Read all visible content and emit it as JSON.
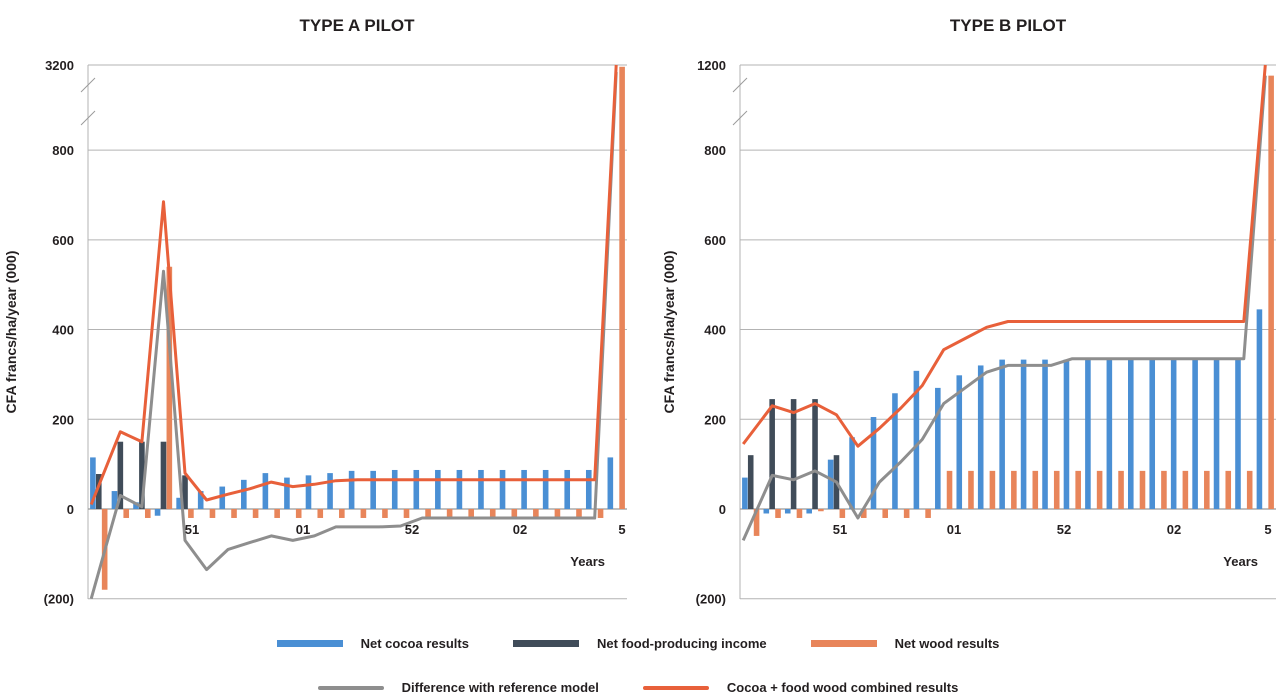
{
  "colors": {
    "cocoa": "#4a8fd4",
    "food": "#404c59",
    "wood": "#e8855a",
    "difference": "#8e8e8e",
    "combined": "#e8603a",
    "grid": "#b3b3b3",
    "text": "#231f20"
  },
  "legend": {
    "cocoa": "Net cocoa results",
    "food": "Net food-producing income",
    "wood": "Net wood results",
    "difference": "Difference with reference model",
    "combined": "Cocoa + food wood combined results"
  },
  "chart_data": [
    {
      "type": "bar",
      "title": "TYPE A PILOT",
      "xlabel": "Years",
      "ylabel": "CFA francs/ha/year (000)",
      "y_tick_labels": [
        "(200)",
        "0",
        "200",
        "400",
        "600",
        "800",
        "3200"
      ],
      "axis_break": "between 800 and 3200",
      "x_tick_labels": [
        "51",
        "01",
        "52",
        "02",
        "5"
      ],
      "x": [
        1,
        2,
        3,
        4,
        5,
        6,
        7,
        8,
        9,
        10,
        11,
        12,
        13,
        14,
        15,
        16,
        17,
        18,
        19,
        20,
        21,
        22,
        23,
        24,
        25
      ],
      "series": [
        {
          "name": "Net cocoa results",
          "kind": "bar",
          "values": [
            115,
            40,
            15,
            -15,
            25,
            40,
            50,
            65,
            80,
            70,
            75,
            80,
            85,
            85,
            87,
            87,
            87,
            87,
            87,
            87,
            87,
            87,
            87,
            87,
            115
          ]
        },
        {
          "name": "Net food-producing income",
          "kind": "bar",
          "values": [
            78,
            150,
            150,
            150,
            75,
            0,
            0,
            0,
            0,
            0,
            0,
            0,
            0,
            0,
            0,
            0,
            0,
            0,
            0,
            0,
            0,
            0,
            0,
            0,
            0
          ]
        },
        {
          "name": "Net wood results",
          "kind": "bar",
          "values": [
            -180,
            -20,
            -20,
            540,
            -20,
            -20,
            -20,
            -20,
            -20,
            -20,
            -20,
            -20,
            -20,
            -20,
            -20,
            -20,
            -20,
            -20,
            -20,
            -20,
            -20,
            -20,
            -20,
            -20,
            3150
          ]
        },
        {
          "name": "Difference with reference model",
          "kind": "line",
          "values": [
            -200,
            30,
            5,
            530,
            -70,
            -135,
            -90,
            -75,
            -60,
            -70,
            -60,
            -40,
            -40,
            -40,
            -38,
            -20,
            -20,
            -20,
            -20,
            -20,
            -20,
            -20,
            -20,
            -20,
            3000
          ]
        },
        {
          "name": "Cocoa + food wood combined results",
          "kind": "line",
          "values": [
            10,
            172,
            150,
            685,
            80,
            20,
            33,
            45,
            60,
            50,
            55,
            63,
            65,
            65,
            65,
            65,
            65,
            65,
            65,
            65,
            65,
            65,
            65,
            65,
            3200
          ]
        }
      ]
    },
    {
      "type": "bar",
      "title": "TYPE B PILOT",
      "xlabel": "Years",
      "ylabel": "CFA francs/ha/year (000)",
      "y_tick_labels": [
        "(200)",
        "0",
        "200",
        "400",
        "600",
        "800",
        "1200"
      ],
      "axis_break": "between 800 and 1200",
      "x_tick_labels": [
        "51",
        "01",
        "52",
        "02",
        "5"
      ],
      "x": [
        1,
        2,
        3,
        4,
        5,
        6,
        7,
        8,
        9,
        10,
        11,
        12,
        13,
        14,
        15,
        16,
        17,
        18,
        19,
        20,
        21,
        22,
        23,
        24,
        25
      ],
      "series": [
        {
          "name": "Net cocoa results",
          "kind": "bar",
          "values": [
            70,
            -10,
            -10,
            -10,
            110,
            160,
            205,
            258,
            308,
            270,
            298,
            320,
            333,
            333,
            333,
            333,
            333,
            333,
            333,
            333,
            333,
            333,
            333,
            333,
            445
          ]
        },
        {
          "name": "Net food-producing income",
          "kind": "bar",
          "values": [
            120,
            245,
            245,
            245,
            120,
            0,
            0,
            0,
            0,
            0,
            0,
            0,
            0,
            0,
            0,
            0,
            0,
            0,
            0,
            0,
            0,
            0,
            0,
            0,
            0
          ]
        },
        {
          "name": "Net wood results",
          "kind": "bar",
          "values": [
            -60,
            -20,
            -20,
            -5,
            -20,
            -20,
            -20,
            -20,
            -20,
            85,
            85,
            85,
            85,
            85,
            85,
            85,
            85,
            85,
            85,
            85,
            85,
            85,
            85,
            85,
            1150
          ]
        },
        {
          "name": "Difference with reference model",
          "kind": "line",
          "values": [
            -70,
            75,
            65,
            85,
            60,
            -20,
            60,
            105,
            155,
            235,
            270,
            305,
            320,
            320,
            320,
            335,
            335,
            335,
            335,
            335,
            335,
            335,
            335,
            335,
            1150
          ]
        },
        {
          "name": "Cocoa + food wood combined results",
          "kind": "line",
          "values": [
            145,
            230,
            215,
            235,
            210,
            140,
            180,
            225,
            275,
            355,
            380,
            405,
            418,
            418,
            418,
            418,
            418,
            418,
            418,
            418,
            418,
            418,
            418,
            418,
            1200
          ]
        }
      ]
    }
  ]
}
